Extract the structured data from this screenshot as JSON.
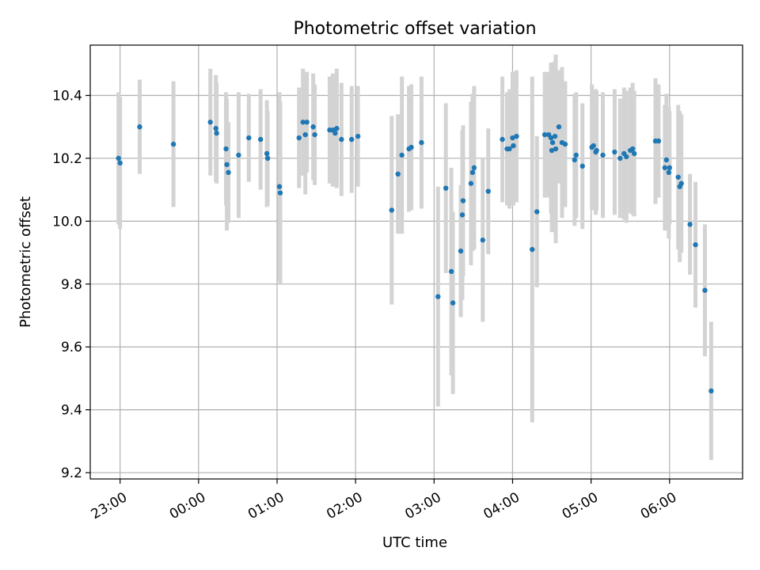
{
  "chart_data": {
    "type": "scatter",
    "title": "Photometric offset variation",
    "xlabel": "UTC time",
    "ylabel": "Photometric offset",
    "x_ticks": [
      "23:00",
      "00:00",
      "01:00",
      "02:00",
      "03:00",
      "04:00",
      "05:00",
      "06:00"
    ],
    "y_ticks": [
      9.2,
      9.4,
      9.6,
      9.8,
      10.0,
      10.2,
      10.4
    ],
    "xlim_hours": [
      22.62,
      30.93
    ],
    "ylim": [
      9.18,
      10.56
    ],
    "grid": true,
    "colors": {
      "point": "#1f77b4",
      "errorbar": "#d3d3d3"
    },
    "series": [
      {
        "x_hours": [
          22.98,
          23.0,
          23.25,
          23.68,
          24.15,
          24.22,
          24.23,
          24.35,
          24.36,
          24.38,
          24.51,
          24.64,
          24.79,
          24.87,
          24.88,
          25.03,
          25.04,
          25.28,
          25.33,
          25.36,
          25.38,
          25.46,
          25.48,
          25.67,
          25.71,
          25.74,
          25.76,
          25.82,
          25.95,
          26.03,
          26.46,
          26.54,
          26.59,
          26.68,
          26.71,
          26.84,
          27.05,
          27.15,
          27.22,
          27.24,
          27.34,
          27.36,
          27.37,
          27.47,
          27.49,
          27.51,
          27.62,
          27.69,
          27.87,
          27.93,
          27.96,
          28.0,
          28.01,
          28.05,
          28.25,
          28.31,
          28.41,
          28.46,
          28.49,
          28.5,
          28.51,
          28.54,
          28.55,
          28.59,
          28.63,
          28.67,
          28.79,
          28.81,
          28.89,
          29.01,
          29.03,
          29.06,
          29.07,
          29.15,
          29.3,
          29.37,
          29.42,
          29.45,
          29.5,
          29.53,
          29.55,
          29.82,
          29.86,
          29.94,
          29.96,
          29.99,
          30.0,
          30.11,
          30.13,
          30.15,
          30.26,
          30.33,
          30.45,
          30.53
        ],
        "y": [
          10.2,
          10.185,
          10.3,
          10.245,
          10.315,
          10.295,
          10.28,
          10.23,
          10.18,
          10.155,
          10.21,
          10.265,
          10.26,
          10.215,
          10.2,
          10.11,
          10.09,
          10.265,
          10.315,
          10.275,
          10.315,
          10.3,
          10.275,
          10.29,
          10.29,
          10.28,
          10.295,
          10.26,
          10.26,
          10.27,
          10.035,
          10.15,
          10.21,
          10.23,
          10.235,
          10.25,
          9.76,
          10.105,
          9.84,
          9.74,
          9.905,
          10.02,
          10.065,
          10.12,
          10.155,
          10.17,
          9.94,
          10.095,
          10.26,
          10.23,
          10.23,
          10.265,
          10.24,
          10.27,
          9.91,
          10.03,
          10.275,
          10.275,
          10.265,
          10.225,
          10.25,
          10.27,
          10.23,
          10.3,
          10.25,
          10.245,
          10.195,
          10.21,
          10.175,
          10.235,
          10.24,
          10.22,
          10.225,
          10.21,
          10.22,
          10.2,
          10.215,
          10.205,
          10.225,
          10.23,
          10.215,
          10.255,
          10.255,
          10.17,
          10.195,
          10.155,
          10.17,
          10.14,
          10.11,
          10.12,
          9.99,
          9.925,
          9.78,
          9.46
        ],
        "yerr": [
          0.21,
          0.21,
          0.15,
          0.2,
          0.17,
          0.17,
          0.16,
          0.18,
          0.21,
          0.16,
          0.2,
          0.14,
          0.16,
          0.17,
          0.15,
          0.3,
          0.29,
          0.16,
          0.17,
          0.19,
          0.16,
          0.17,
          0.16,
          0.17,
          0.18,
          0.16,
          0.19,
          0.18,
          0.17,
          0.16,
          0.3,
          0.19,
          0.25,
          0.2,
          0.2,
          0.21,
          0.35,
          0.27,
          0.33,
          0.29,
          0.21,
          0.27,
          0.24,
          0.26,
          0.25,
          0.26,
          0.26,
          0.2,
          0.2,
          0.18,
          0.19,
          0.21,
          0.19,
          0.21,
          0.55,
          0.24,
          0.2,
          0.2,
          0.24,
          0.26,
          0.21,
          0.24,
          0.3,
          0.18,
          0.24,
          0.2,
          0.21,
          0.2,
          0.2,
          0.2,
          0.17,
          0.2,
          0.19,
          0.2,
          0.2,
          0.19,
          0.21,
          0.21,
          0.2,
          0.21,
          0.2,
          0.2,
          0.18,
          0.2,
          0.21,
          0.21,
          0.18,
          0.23,
          0.24,
          0.22,
          0.16,
          0.2,
          0.21,
          0.22
        ]
      }
    ]
  }
}
